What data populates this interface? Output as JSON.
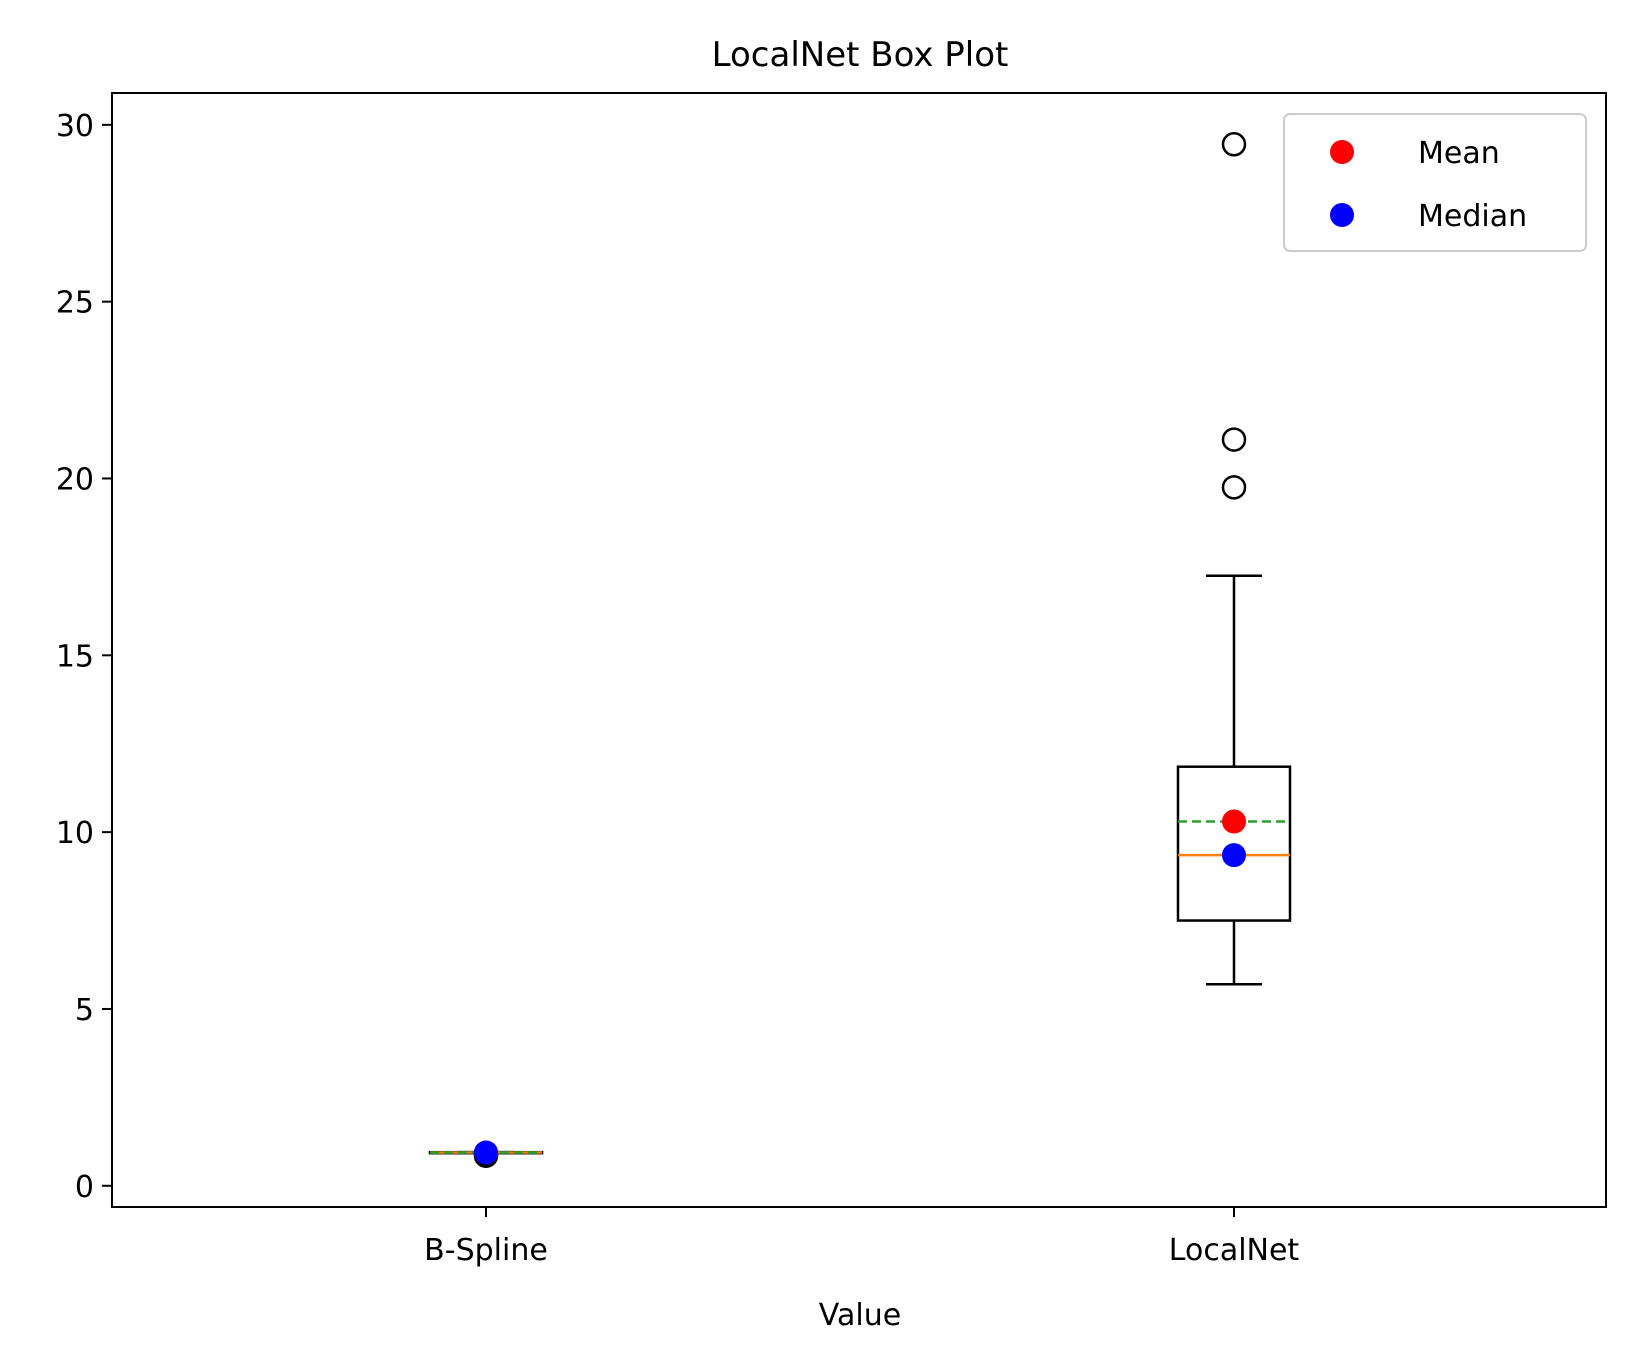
{
  "chart_data": {
    "type": "box",
    "title": "LocalNet Box Plot",
    "xlabel": "Value",
    "ylabel": "",
    "ylim": [
      -0.6,
      30.9
    ],
    "yticks": [
      0,
      5,
      10,
      15,
      20,
      25,
      30
    ],
    "categories": [
      "B-Spline",
      "LocalNet"
    ],
    "boxes": [
      {
        "name": "B-Spline",
        "whisker_low": 0.93,
        "q1": 0.93,
        "median": 0.94,
        "q3": 0.95,
        "whisker_high": 0.95,
        "mean": 0.94,
        "outliers": [
          0.85,
          0.9
        ]
      },
      {
        "name": "LocalNet",
        "whisker_low": 5.7,
        "q1": 7.5,
        "median": 9.35,
        "q3": 11.85,
        "whisker_high": 17.25,
        "mean": 10.3,
        "outliers": [
          19.75,
          21.1,
          29.45
        ]
      }
    ],
    "legend": {
      "position": "top-right",
      "entries": [
        {
          "label": "Mean",
          "color": "#ff0000"
        },
        {
          "label": "Median",
          "color": "#0000ff"
        }
      ]
    },
    "colors": {
      "box": "#000000",
      "median_line": "#ff7f0e",
      "mean_line": "#2ca02c",
      "mean_marker": "#ff0000",
      "median_marker": "#0000ff"
    },
    "grid": false
  }
}
